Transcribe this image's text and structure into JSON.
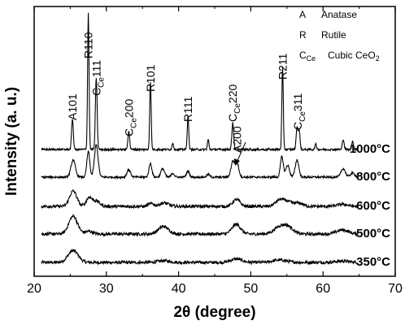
{
  "chart_data": {
    "type": "line",
    "xlabel": "2θ (degree)",
    "ylabel": "Intensity (a. u.)",
    "xlim": [
      20,
      70
    ],
    "xticks": [
      "20",
      "30",
      "40",
      "50",
      "60",
      "70"
    ],
    "legend": {
      "placement": "top-right",
      "entries": [
        {
          "key": "A",
          "key_sub": "",
          "name": "Anatase",
          "name_sub": ""
        },
        {
          "key": "R",
          "key_sub": "",
          "name": "Rutile",
          "name_sub": ""
        },
        {
          "key": "C",
          "key_sub": "Ce",
          "name": "Cubic CeO",
          "name_sub": "2"
        }
      ]
    },
    "series": [
      {
        "name": "350°C",
        "baseline": 0.0,
        "peaks": [
          [
            25.4,
            0.35,
            0.7
          ],
          [
            38.0,
            0.05,
            0.8
          ],
          [
            48.0,
            0.1,
            0.8
          ],
          [
            54.0,
            0.07,
            1.0
          ],
          [
            62.7,
            0.04,
            1.0
          ]
        ]
      },
      {
        "name": "500°C",
        "baseline": 1.0,
        "peaks": [
          [
            25.4,
            0.52,
            0.6
          ],
          [
            27.6,
            0.08,
            0.5
          ],
          [
            37.9,
            0.22,
            0.7
          ],
          [
            48.0,
            0.28,
            0.6
          ],
          [
            54.0,
            0.2,
            0.8
          ],
          [
            55.2,
            0.18,
            0.7
          ],
          [
            62.7,
            0.12,
            0.8
          ]
        ]
      },
      {
        "name": "600°C",
        "baseline": 2.0,
        "peaks": [
          [
            25.4,
            0.45,
            0.5
          ],
          [
            27.6,
            0.25,
            0.4
          ],
          [
            28.6,
            0.15,
            0.5
          ],
          [
            36.2,
            0.08,
            0.4
          ],
          [
            38.0,
            0.1,
            0.6
          ],
          [
            48.0,
            0.2,
            0.5
          ],
          [
            54.0,
            0.18,
            0.6
          ],
          [
            55.1,
            0.12,
            0.6
          ],
          [
            56.6,
            0.1,
            0.6
          ],
          [
            62.7,
            0.06,
            0.7
          ]
        ]
      },
      {
        "name": "800°C",
        "baseline": 3.0,
        "peaks": [
          [
            25.4,
            0.5,
            0.3
          ],
          [
            27.5,
            0.75,
            0.2
          ],
          [
            28.6,
            0.95,
            0.25
          ],
          [
            33.1,
            0.22,
            0.25
          ],
          [
            36.1,
            0.4,
            0.2
          ],
          [
            37.8,
            0.25,
            0.25
          ],
          [
            39.2,
            0.12,
            0.2
          ],
          [
            41.3,
            0.18,
            0.2
          ],
          [
            44.1,
            0.08,
            0.2
          ],
          [
            47.5,
            0.45,
            0.25
          ],
          [
            48.1,
            0.4,
            0.25
          ],
          [
            54.3,
            0.6,
            0.2
          ],
          [
            55.1,
            0.35,
            0.25
          ],
          [
            56.4,
            0.5,
            0.25
          ],
          [
            62.8,
            0.25,
            0.3
          ],
          [
            64.1,
            0.12,
            0.3
          ]
        ]
      },
      {
        "name": "1000°C",
        "baseline": 4.0,
        "peaks": [
          [
            25.3,
            0.9,
            0.12
          ],
          [
            27.5,
            4.0,
            0.1
          ],
          [
            28.6,
            2.1,
            0.12
          ],
          [
            33.1,
            0.55,
            0.12
          ],
          [
            36.1,
            2.0,
            0.1
          ],
          [
            39.2,
            0.2,
            0.1
          ],
          [
            41.3,
            1.0,
            0.1
          ],
          [
            44.1,
            0.3,
            0.1
          ],
          [
            47.5,
            0.8,
            0.12
          ],
          [
            54.4,
            2.4,
            0.1
          ],
          [
            56.4,
            0.65,
            0.12
          ],
          [
            56.7,
            0.55,
            0.12
          ],
          [
            59.0,
            0.15,
            0.12
          ],
          [
            62.8,
            0.3,
            0.12
          ],
          [
            64.1,
            0.25,
            0.12
          ]
        ]
      }
    ],
    "annotations": [
      {
        "main": "A101",
        "sub": "",
        "tail": "",
        "x": 25.3
      },
      {
        "main": "R110",
        "sub": "",
        "tail": "",
        "x": 27.5
      },
      {
        "main": "C",
        "sub": "Ce",
        "tail": "111",
        "x": 28.6
      },
      {
        "main": "C",
        "sub": "Ce",
        "tail": "200",
        "x": 33.1
      },
      {
        "main": "R101",
        "sub": "",
        "tail": "",
        "x": 36.1
      },
      {
        "main": "R111",
        "sub": "",
        "tail": "",
        "x": 41.3
      },
      {
        "main": "C",
        "sub": "Ce",
        "tail": "220",
        "x": 47.5
      },
      {
        "main": "A200",
        "sub": "",
        "tail": "",
        "x": 48.1
      },
      {
        "main": "R211",
        "sub": "",
        "tail": "",
        "x": 54.4
      },
      {
        "main": "C",
        "sub": "Ce",
        "tail": "311",
        "x": 56.5
      }
    ]
  }
}
